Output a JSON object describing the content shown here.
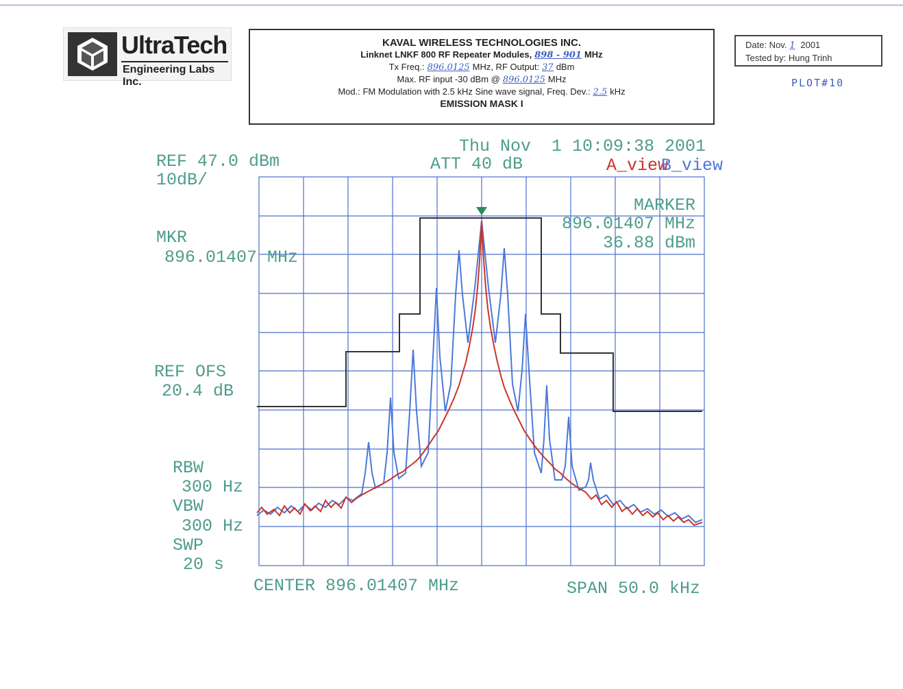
{
  "header": {
    "logo": {
      "name": "UltraTech",
      "subtitle": "Engineering Labs Inc."
    },
    "title_block": {
      "company": "KAVAL WIRELESS TECHNOLOGIES INC.",
      "freq_line": {
        "text": "Linknet LNKF 800 RF Repeater Modules,",
        "value": "898 - 901",
        "unit": "MHz"
      },
      "tx_line": {
        "label": "Tx Freq.:",
        "freq": "896.0125",
        "mid": "MHz, RF Output:",
        "output": "37",
        "unit": "dBm"
      },
      "input_line": {
        "text": "Max. RF input -30 dBm @",
        "freq": "896.0125",
        "unit": "MHz"
      },
      "mod_line": {
        "text": "Mod.: FM Modulation with 2.5 kHz Sine wave signal, Freq. Dev.:",
        "dev": "2.5",
        "unit": "kHz"
      },
      "mask_title": "EMISSION MASK I"
    },
    "date_box": {
      "date": {
        "label": "Date: Nov.",
        "day": "1",
        "year": "2001"
      },
      "tested_by": {
        "label": "Tested by:",
        "name": "Hung Trinh"
      }
    },
    "plot_note": "PLOT#10"
  },
  "screen": {
    "ref": "REF 47.0 dBm",
    "scale": "10dB/",
    "att": "ATT 40 dB",
    "timestamp": "Thu Nov  1 10:09:38 2001",
    "a_view": "A_view",
    "b_view": "B_view",
    "marker": {
      "title": "MARKER",
      "freq": "896.01407 MHz",
      "level": "36.88 dBm"
    },
    "mkr": {
      "label": "MKR",
      "value": "896.01407 MHz"
    },
    "ref_ofs": {
      "label": "REF OFS",
      "value": "20.4 dB"
    },
    "rbw": {
      "label": "RBW",
      "value": "300 Hz"
    },
    "vbw": {
      "label": "VBW",
      "value": "300 Hz"
    },
    "swp": {
      "label": "SWP",
      "value": "20 s"
    },
    "center": "CENTER 896.01407 MHz",
    "span": "SPAN 50.0 kHz"
  }
}
